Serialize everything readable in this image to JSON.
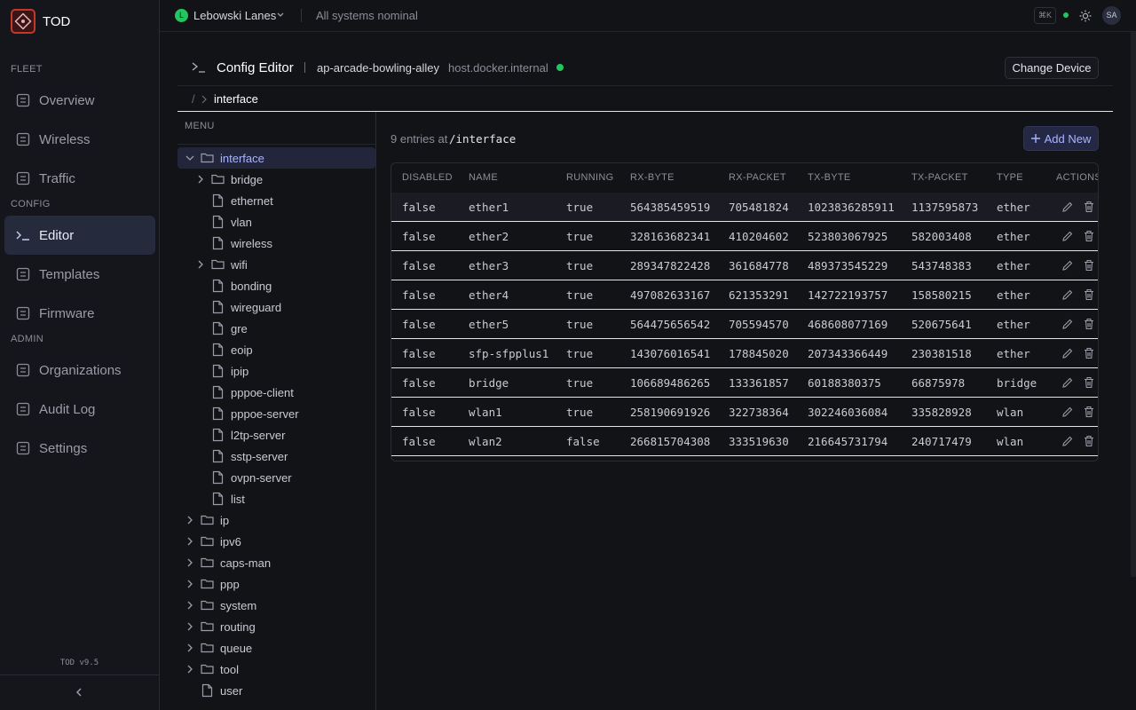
{
  "sidebar": {
    "brand": "TOD",
    "sections": [
      {
        "title": "FLEET",
        "items": [
          "Overview",
          "Wireless",
          "Traffic"
        ]
      },
      {
        "title": "CONFIG",
        "items": [
          "Editor",
          "Templates",
          "Firmware"
        ]
      },
      {
        "title": "ADMIN",
        "items": [
          "Organizations",
          "Audit Log",
          "Settings"
        ]
      }
    ],
    "version": "TOD v9.5"
  },
  "topbar": {
    "org_initial": "L",
    "org_name": "Lebowski Lanes",
    "status": "All systems nominal",
    "shortcut": "⌘K",
    "user_initials": "SA"
  },
  "header": {
    "title": "Config Editor",
    "device": "ap-arcade-bowling-alley",
    "host": "host.docker.internal",
    "button": "Change Device"
  },
  "breadcrumb": {
    "root": "/",
    "current": "interface"
  },
  "menu": {
    "title": "MENU",
    "items": [
      "interface",
      "bridge",
      "ethernet",
      "vlan",
      "wireless",
      "wifi",
      "bonding",
      "wireguard",
      "gre",
      "eoip",
      "ipip",
      "pppoe-client",
      "pppoe-server",
      "l2tp-server",
      "sstp-server",
      "ovpn-server",
      "list",
      "ip",
      "ipv6",
      "caps-man",
      "ppp",
      "system",
      "routing",
      "queue",
      "tool",
      "user"
    ]
  },
  "content": {
    "entries_label": "9 entries at",
    "path": "/interface",
    "add_button": "Add New"
  },
  "table": {
    "columns": [
      "DISABLED",
      "NAME",
      "RUNNING",
      "RX-BYTE",
      "RX-PACKET",
      "TX-BYTE",
      "TX-PACKET",
      "TYPE",
      "ACTIONS"
    ],
    "rows": [
      [
        "false",
        "ether1",
        "true",
        "564385459519",
        "705481824",
        "1023836285911",
        "1137595873",
        "ether"
      ],
      [
        "false",
        "ether2",
        "true",
        "328163682341",
        "410204602",
        "523803067925",
        "582003408",
        "ether"
      ],
      [
        "false",
        "ether3",
        "true",
        "289347822428",
        "361684778",
        "489373545229",
        "543748383",
        "ether"
      ],
      [
        "false",
        "ether4",
        "true",
        "497082633167",
        "621353291",
        "142722193757",
        "158580215",
        "ether"
      ],
      [
        "false",
        "ether5",
        "true",
        "564475656542",
        "705594570",
        "468608077169",
        "520675641",
        "ether"
      ],
      [
        "false",
        "sfp-sfpplus1",
        "true",
        "143076016541",
        "178845020",
        "207343366449",
        "230381518",
        "ether"
      ],
      [
        "false",
        "bridge",
        "true",
        "106689486265",
        "133361857",
        "60188380375",
        "66875978",
        "bridge"
      ],
      [
        "false",
        "wlan1",
        "true",
        "258190691926",
        "322738364",
        "302246036084",
        "335828928",
        "wlan"
      ],
      [
        "false",
        "wlan2",
        "false",
        "266815704308",
        "333519630",
        "216645731794",
        "240717479",
        "wlan"
      ]
    ]
  }
}
